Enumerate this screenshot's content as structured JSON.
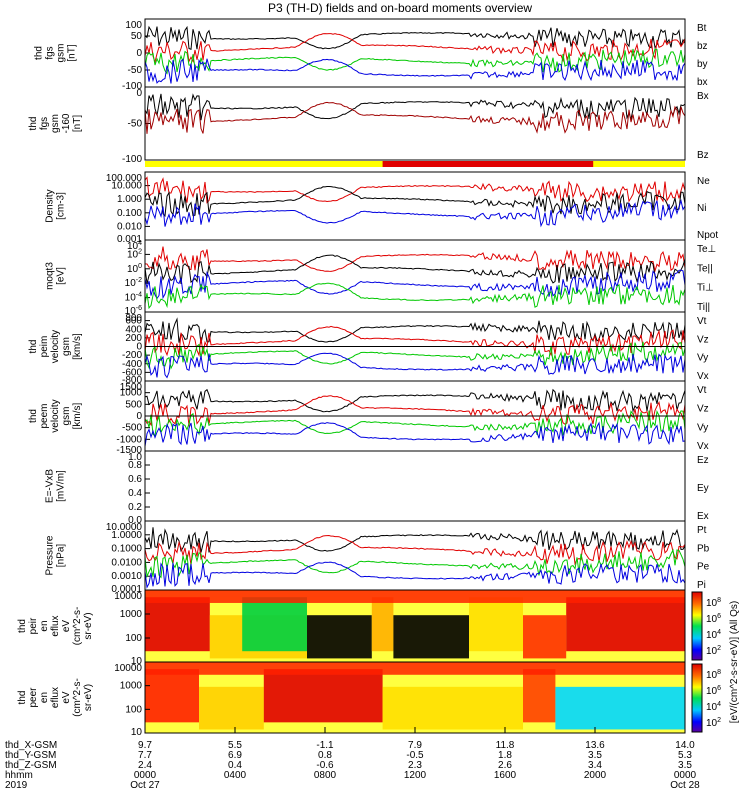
{
  "title": "P3 (TH-D) fields and on-board moments overview",
  "colors": {
    "black": "#000000",
    "red": "#e00000",
    "green": "#00c800",
    "blue": "#0000e0",
    "darkred": "#a00000",
    "yellow": "#ffff00",
    "modered": "#e00000"
  },
  "chart_data": [
    {
      "type": "line",
      "ylabel": [
        "thd",
        "fgs",
        "gsm",
        "[nT]"
      ],
      "yticks": [
        "100",
        "50",
        "0",
        "-50",
        "-100"
      ],
      "legend": [
        {
          "name": "Bt",
          "color": "black"
        },
        {
          "name": "bz",
          "color": "red"
        },
        {
          "name": "by",
          "color": "green"
        },
        {
          "name": "bx",
          "color": "blue"
        }
      ]
    },
    {
      "type": "line",
      "ylabel": [
        "thd",
        "fgs",
        "gsm",
        "-160",
        "[nT]"
      ],
      "yticks": [
        "0",
        "-50",
        "-100"
      ],
      "legend": [
        {
          "name": "Bx",
          "color": "black"
        },
        {
          "name": "Bz",
          "color": "darkred"
        }
      ]
    },
    {
      "type": "line",
      "ylabel": [
        "Density",
        "[cm-3]"
      ],
      "yticks": [
        "100.000",
        "10.000",
        "1.000",
        "0.100",
        "0.010",
        "0.001"
      ],
      "legend": [
        {
          "name": "Ne",
          "color": "red"
        },
        {
          "name": "Ni",
          "color": "black"
        },
        {
          "name": "Npot",
          "color": "blue"
        }
      ]
    },
    {
      "type": "line",
      "ylabel": [
        "moqt3",
        "[eV]"
      ],
      "yticks": [
        "10",
        "10",
        "10",
        "10",
        "10",
        "10"
      ],
      "ytick_sup": [
        "4",
        "2",
        "0",
        "-2",
        "-4",
        "-6"
      ],
      "legend": [
        {
          "name": "Te⊥",
          "color": "red"
        },
        {
          "name": "Te||",
          "color": "black"
        },
        {
          "name": "Ti⊥",
          "color": "blue"
        },
        {
          "name": "Ti||",
          "color": "green"
        }
      ]
    },
    {
      "type": "line",
      "ylabel": [
        "thd",
        "peim",
        "velocity",
        "gsm",
        "[km/s]"
      ],
      "yticks": [
        "800",
        "600",
        "400",
        "200",
        "0",
        "-200",
        "-400",
        "-600",
        "-800"
      ],
      "legend": [
        {
          "name": "Vt",
          "color": "black"
        },
        {
          "name": "Vz",
          "color": "red"
        },
        {
          "name": "Vy",
          "color": "green"
        },
        {
          "name": "Vx",
          "color": "blue"
        }
      ]
    },
    {
      "type": "line",
      "ylabel": [
        "thd",
        "peem",
        "velocity",
        "gsm",
        "[km/s]"
      ],
      "yticks": [
        "1500",
        "1000",
        "500",
        "0",
        "-500",
        "-1000",
        "-1500"
      ],
      "legend": [
        {
          "name": "Vt",
          "color": "black"
        },
        {
          "name": "Vz",
          "color": "red"
        },
        {
          "name": "Vy",
          "color": "green"
        },
        {
          "name": "Vx",
          "color": "blue"
        }
      ]
    },
    {
      "type": "line",
      "ylabel": [
        "E=-VxB",
        "[mV/m]"
      ],
      "yticks": [
        "1.0",
        "0.8",
        "0.6",
        "0.4",
        "0.2",
        "0.0"
      ],
      "legend": [
        {
          "name": "Ez",
          "color": "red"
        },
        {
          "name": "Ey",
          "color": "green"
        },
        {
          "name": "Ex",
          "color": "blue"
        }
      ]
    },
    {
      "type": "line",
      "ylabel": [
        "Pressure",
        "[nPa]"
      ],
      "yticks": [
        "10.0000",
        "1.0000",
        "0.1000",
        "0.0100",
        "0.0010",
        "0.0001"
      ],
      "legend": [
        {
          "name": "Pt",
          "color": "black"
        },
        {
          "name": "Pb",
          "color": "red"
        },
        {
          "name": "Pe",
          "color": "green"
        },
        {
          "name": "Pi",
          "color": "blue"
        }
      ]
    },
    {
      "type": "heatmap",
      "ylabel": [
        "thd",
        "peir",
        "en",
        "eflux",
        "eV",
        "(cm^2-s-",
        "sr-eV)"
      ],
      "yticks": [
        "10000",
        "1000",
        "100",
        "10"
      ]
    },
    {
      "type": "heatmap",
      "ylabel": [
        "thd",
        "peer",
        "en",
        "eflux",
        "eV",
        "(cm^2-s-",
        "sr-eV)"
      ],
      "yticks": [
        "10000",
        "1000",
        "100",
        "10"
      ]
    }
  ],
  "colorbar": {
    "label": "[eV/(cm^2-s-sr-eV)] (All Qs)",
    "ticks_upper": [
      "10",
      "10",
      "10",
      "10"
    ],
    "sup_upper": [
      "8",
      "6",
      "4",
      "2"
    ],
    "ticks_lower": [
      "10",
      "10",
      "10",
      "10"
    ],
    "sup_lower": [
      "8",
      "6",
      "4",
      "2"
    ]
  },
  "xaxis": {
    "rows": [
      {
        "label": "thd_X-GSM",
        "values": [
          "9.7",
          "5.5",
          "-1.1",
          "7.9",
          "11.8",
          "13.6",
          "14.0"
        ]
      },
      {
        "label": "thd_Y-GSM",
        "values": [
          "7.7",
          "6.9",
          "0.8",
          "-0.5",
          "1.8",
          "3.5",
          "5.3"
        ]
      },
      {
        "label": "thd_Z-GSM",
        "values": [
          "2.4",
          "0.4",
          "-0.6",
          "2.3",
          "2.6",
          "3.4",
          "3.5"
        ]
      },
      {
        "label": "hhmm",
        "values": [
          "0000",
          "0400",
          "0800",
          "1200",
          "1600",
          "2000",
          "0000"
        ]
      },
      {
        "label": "2019",
        "values": [
          "Oct 27",
          "",
          "",
          "",
          "",
          "",
          "Oct 28"
        ]
      }
    ]
  }
}
